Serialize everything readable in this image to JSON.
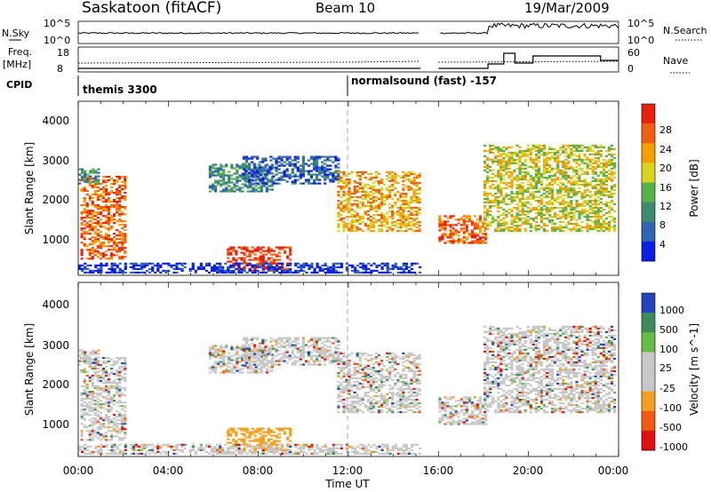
{
  "header": {
    "station_title": "Saskatoon (fitACF)",
    "beam_title": "Beam 10",
    "date_title": "19/Mar/2009"
  },
  "noise_panel": {
    "left_label": "N.Sky",
    "right_label": "N.Search",
    "left_ticks": [
      "10^5",
      "10^0"
    ],
    "right_ticks": [
      "10^5",
      "10^0"
    ]
  },
  "freq_panel": {
    "left_label_line1": "Freq.",
    "left_label_line2": "[MHz]",
    "right_label": "Nave",
    "left_ticks": [
      "18",
      "8"
    ],
    "right_ticks": [
      "60",
      "0"
    ]
  },
  "cpid": {
    "label": "CPID",
    "programs": [
      "themis 3300",
      "normalsound (fast) -157"
    ]
  },
  "colors": {
    "power_scale": [
      "#0b1fe0",
      "#2e64b2",
      "#3e8c6e",
      "#58b24a",
      "#d9d51c",
      "#f5a000",
      "#f06010",
      "#e82010"
    ],
    "velocity_scale": [
      "#e01010",
      "#f05a10",
      "#f5a020",
      "#c8c8c8",
      "#c8c8c8",
      "#66bb44",
      "#3c8c5a",
      "#2244bb"
    ]
  },
  "chart_data": [
    {
      "type": "heatmap",
      "title": "",
      "xlabel": "",
      "ylabel": "Slant Range [km]",
      "x_ticks": [
        "00:00",
        "04:00",
        "08:00",
        "12:00",
        "16:00",
        "20:00",
        "00:00"
      ],
      "y_ticks": [
        "1000",
        "2000",
        "3000",
        "4000"
      ],
      "ylim": [
        200,
        4600
      ],
      "colorbar": {
        "label": "Power [dB]",
        "ticks": [
          "4",
          "8",
          "12",
          "16",
          "20",
          "24",
          "28"
        ]
      }
    },
    {
      "type": "heatmap",
      "title": "",
      "xlabel": "Time UT",
      "ylabel": "Slant Range [km]",
      "x_ticks": [
        "00:00",
        "04:00",
        "08:00",
        "12:00",
        "16:00",
        "20:00",
        "00:00"
      ],
      "y_ticks": [
        "1000",
        "2000",
        "3000",
        "4000"
      ],
      "ylim": [
        200,
        4600
      ],
      "colorbar": {
        "label": "Velocity [m s^-1]",
        "ticks": [
          "1000",
          "500",
          "100",
          "25",
          "-25",
          "-100",
          "-500",
          "-1000"
        ]
      }
    }
  ]
}
